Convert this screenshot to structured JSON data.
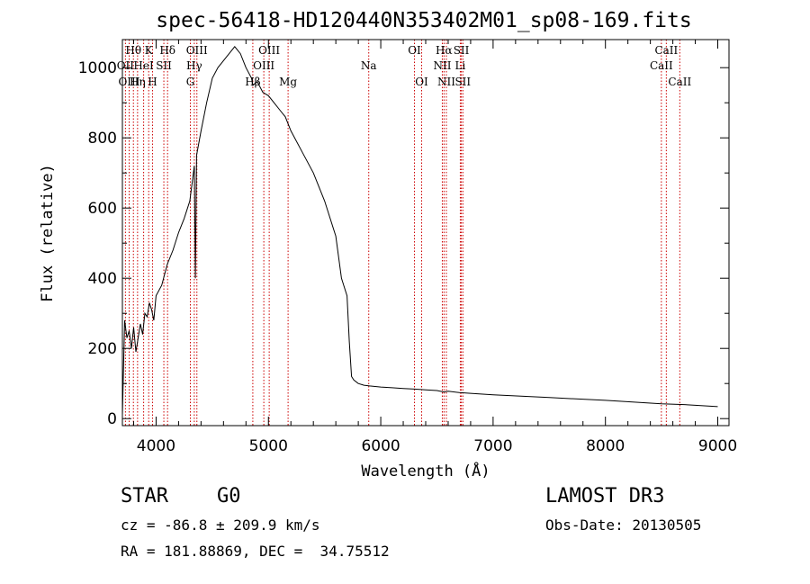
{
  "chart_data": {
    "type": "line",
    "title": "spec-56418-HD120440N353402M01_sp08-169.fits",
    "xlabel": "Wavelength (Å)",
    "ylabel": "Flux (relative)",
    "xlim": [
      3700,
      9100
    ],
    "ylim": [
      -20,
      1080
    ],
    "xticks": [
      4000,
      5000,
      6000,
      7000,
      8000,
      9000
    ],
    "yticks": [
      0,
      200,
      400,
      600,
      800,
      1000
    ],
    "series": [
      {
        "name": "spectrum",
        "x": [
          3700,
          3720,
          3740,
          3760,
          3780,
          3800,
          3820,
          3840,
          3860,
          3880,
          3900,
          3920,
          3940,
          3960,
          3980,
          4000,
          4050,
          4100,
          4150,
          4200,
          4250,
          4300,
          4340,
          4350,
          4360,
          4400,
          4450,
          4500,
          4550,
          4600,
          4650,
          4700,
          4750,
          4800,
          4850,
          4861,
          4900,
          4950,
          5000,
          5050,
          5100,
          5150,
          5200,
          5300,
          5400,
          5500,
          5600,
          5650,
          5700,
          5720,
          5740,
          5760,
          5800,
          5850,
          5900,
          6000,
          6100,
          6200,
          6300,
          6400,
          6500,
          6563,
          6600,
          6700,
          6800,
          7000,
          7500,
          8000,
          8500,
          8700,
          9000
        ],
        "y": [
          10,
          280,
          230,
          250,
          200,
          260,
          190,
          230,
          270,
          240,
          300,
          290,
          330,
          310,
          280,
          350,
          380,
          440,
          480,
          530,
          570,
          620,
          720,
          400,
          750,
          820,
          900,
          970,
          1000,
          1020,
          1040,
          1060,
          1040,
          1000,
          970,
          950,
          960,
          930,
          920,
          900,
          880,
          860,
          820,
          760,
          700,
          620,
          520,
          400,
          350,
          220,
          120,
          110,
          100,
          95,
          93,
          90,
          88,
          86,
          84,
          82,
          80,
          76,
          78,
          74,
          72,
          68,
          60,
          52,
          42,
          40,
          34
        ]
      }
    ],
    "spectral_lines": [
      {
        "label": "Hθ",
        "x": 3798,
        "row": 0
      },
      {
        "label": "OII",
        "x": 3727,
        "row": 1
      },
      {
        "label": "OIII",
        "x": 3760,
        "row": 2
      },
      {
        "label": "K",
        "x": 3934,
        "row": 0
      },
      {
        "label": "HeI",
        "x": 3889,
        "row": 1
      },
      {
        "label": "Hη",
        "x": 3835,
        "row": 2
      },
      {
        "label": "H",
        "x": 3968,
        "row": 2
      },
      {
        "label": "Hδ",
        "x": 4102,
        "row": 0
      },
      {
        "label": "SII",
        "x": 4069,
        "row": 1
      },
      {
        "label": "OIII",
        "x": 4363,
        "row": 0
      },
      {
        "label": "Hγ",
        "x": 4340,
        "row": 1
      },
      {
        "label": "G",
        "x": 4305,
        "row": 2
      },
      {
        "label": "OIII",
        "x": 5007,
        "row": 0
      },
      {
        "label": "OIII",
        "x": 4959,
        "row": 1
      },
      {
        "label": "Hβ",
        "x": 4861,
        "row": 2
      },
      {
        "label": "Mg",
        "x": 5175,
        "row": 2
      },
      {
        "label": "Na",
        "x": 5893,
        "row": 1
      },
      {
        "label": "OI",
        "x": 6300,
        "row": 0
      },
      {
        "label": "OI",
        "x": 6364,
        "row": 2
      },
      {
        "label": "Hα",
        "x": 6563,
        "row": 0
      },
      {
        "label": "NII",
        "x": 6548,
        "row": 1
      },
      {
        "label": "NII",
        "x": 6584,
        "row": 2
      },
      {
        "label": "SII",
        "x": 6717,
        "row": 0
      },
      {
        "label": "Li",
        "x": 6708,
        "row": 1
      },
      {
        "label": "SII",
        "x": 6731,
        "row": 2
      },
      {
        "label": "CaII",
        "x": 8542,
        "row": 0
      },
      {
        "label": "CaII",
        "x": 8498,
        "row": 1
      },
      {
        "label": "CaII",
        "x": 8662,
        "row": 2
      }
    ],
    "colors": {
      "spectrum": "#000000",
      "lines": "#cc0000",
      "axes": "#000000"
    }
  },
  "footer": {
    "object_class": "STAR",
    "subclass": "G0",
    "survey": "LAMOST DR3",
    "cz": "cz = -86.8 ± 209.9 km/s",
    "obs_date": "Obs-Date: 20130505",
    "radec": "RA = 181.88869, DEC =  34.75512"
  }
}
